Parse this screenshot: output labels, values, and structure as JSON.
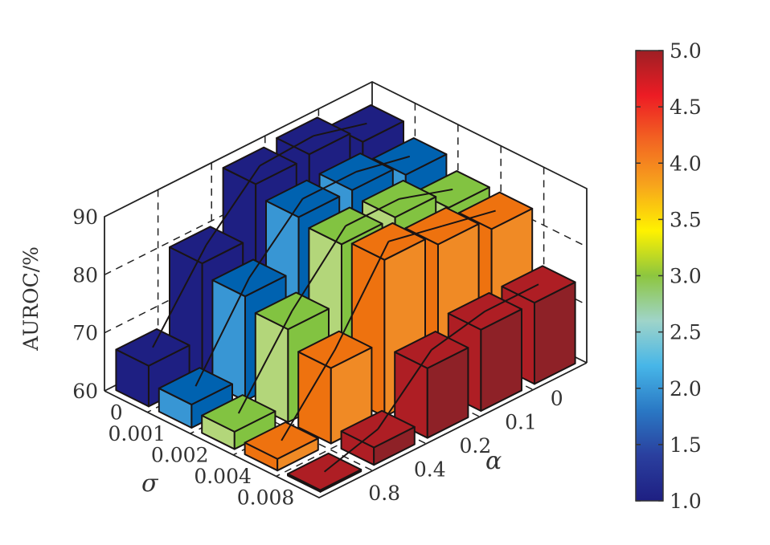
{
  "chart_data": {
    "type": "bar3d",
    "zlabel": "AUROC/%",
    "xlabel": "σ",
    "ylabel": "α",
    "sigma": [
      "0",
      "0.001",
      "0.002",
      "0.004",
      "0.008"
    ],
    "alpha": [
      "0",
      "0.1",
      "0.2",
      "0.4",
      "0.8"
    ],
    "zlim": [
      60,
      90
    ],
    "zticks": [
      "60",
      "70",
      "80",
      "90"
    ],
    "grid": true,
    "series": [
      {
        "sigma": "0",
        "values": [
          87,
          89.5,
          89,
          80,
          67
        ]
      },
      {
        "sigma": "0.001",
        "values": [
          85,
          87,
          87,
          78,
          64
        ]
      },
      {
        "sigma": "0.002",
        "values": [
          83,
          86,
          86,
          76,
          63
        ]
      },
      {
        "sigma": "0.004",
        "values": [
          83,
          85,
          87,
          73,
          62
        ]
      },
      {
        "sigma": "0.008",
        "values": [
          74,
          74,
          72,
          63,
          60.3
        ]
      }
    ],
    "colors": [
      {
        "top": "#1e1f82",
        "left": "#1e1f82",
        "right": "#1e1f82"
      },
      {
        "top": "#0062b0",
        "left": "#3896d4",
        "right": "#0062b0"
      },
      {
        "top": "#82c341",
        "left": "#b3d67a",
        "right": "#82c341"
      },
      {
        "top": "#ee720f",
        "left": "#ee720f",
        "right": "#f08a25"
      },
      {
        "top": "#ae1e24",
        "left": "#ae1e24",
        "right": "#8e2127"
      }
    ],
    "colorbar": {
      "ticks": [
        "1.0",
        "1.5",
        "2.0",
        "2.5",
        "3.0",
        "3.5",
        "4.0",
        "4.5",
        "5.0"
      ],
      "range": [
        1.0,
        5.0
      ],
      "colormap": [
        "#1e1f82",
        "#2a3f9e",
        "#2a78c4",
        "#47b6e8",
        "#9fd4c9",
        "#8dc63f",
        "#fff200",
        "#f7a51c",
        "#f26522",
        "#ed1c24",
        "#9e1f24"
      ]
    }
  }
}
